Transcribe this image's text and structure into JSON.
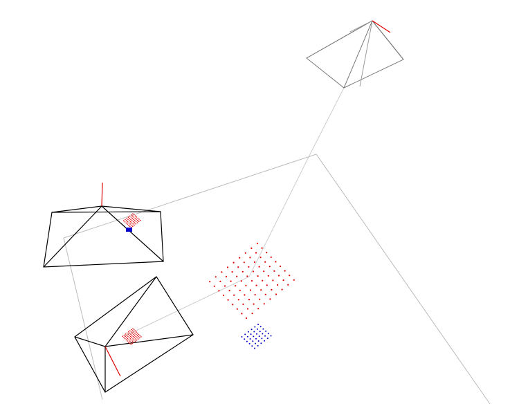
{
  "scene": {
    "background": "#ffffff",
    "colors": {
      "camera_active": "#000000",
      "camera_inactive": "#777777",
      "ground_plane": "#bbbbbb",
      "trajectory": "#cccccc",
      "axis": "#e00000",
      "points_red": "#e00000",
      "points_blue": "#0000cc"
    },
    "cameras": [
      {
        "id": "camera-top",
        "state": "inactive"
      },
      {
        "id": "camera-left",
        "state": "active",
        "has_patch": true
      },
      {
        "id": "camera-bottom",
        "state": "active",
        "has_patch": true
      }
    ],
    "point_grids": [
      {
        "id": "red-grid",
        "color": "points_red",
        "rows": 9,
        "cols": 9
      },
      {
        "id": "blue-grid",
        "color": "points_blue",
        "rows": 6,
        "cols": 6
      }
    ]
  }
}
